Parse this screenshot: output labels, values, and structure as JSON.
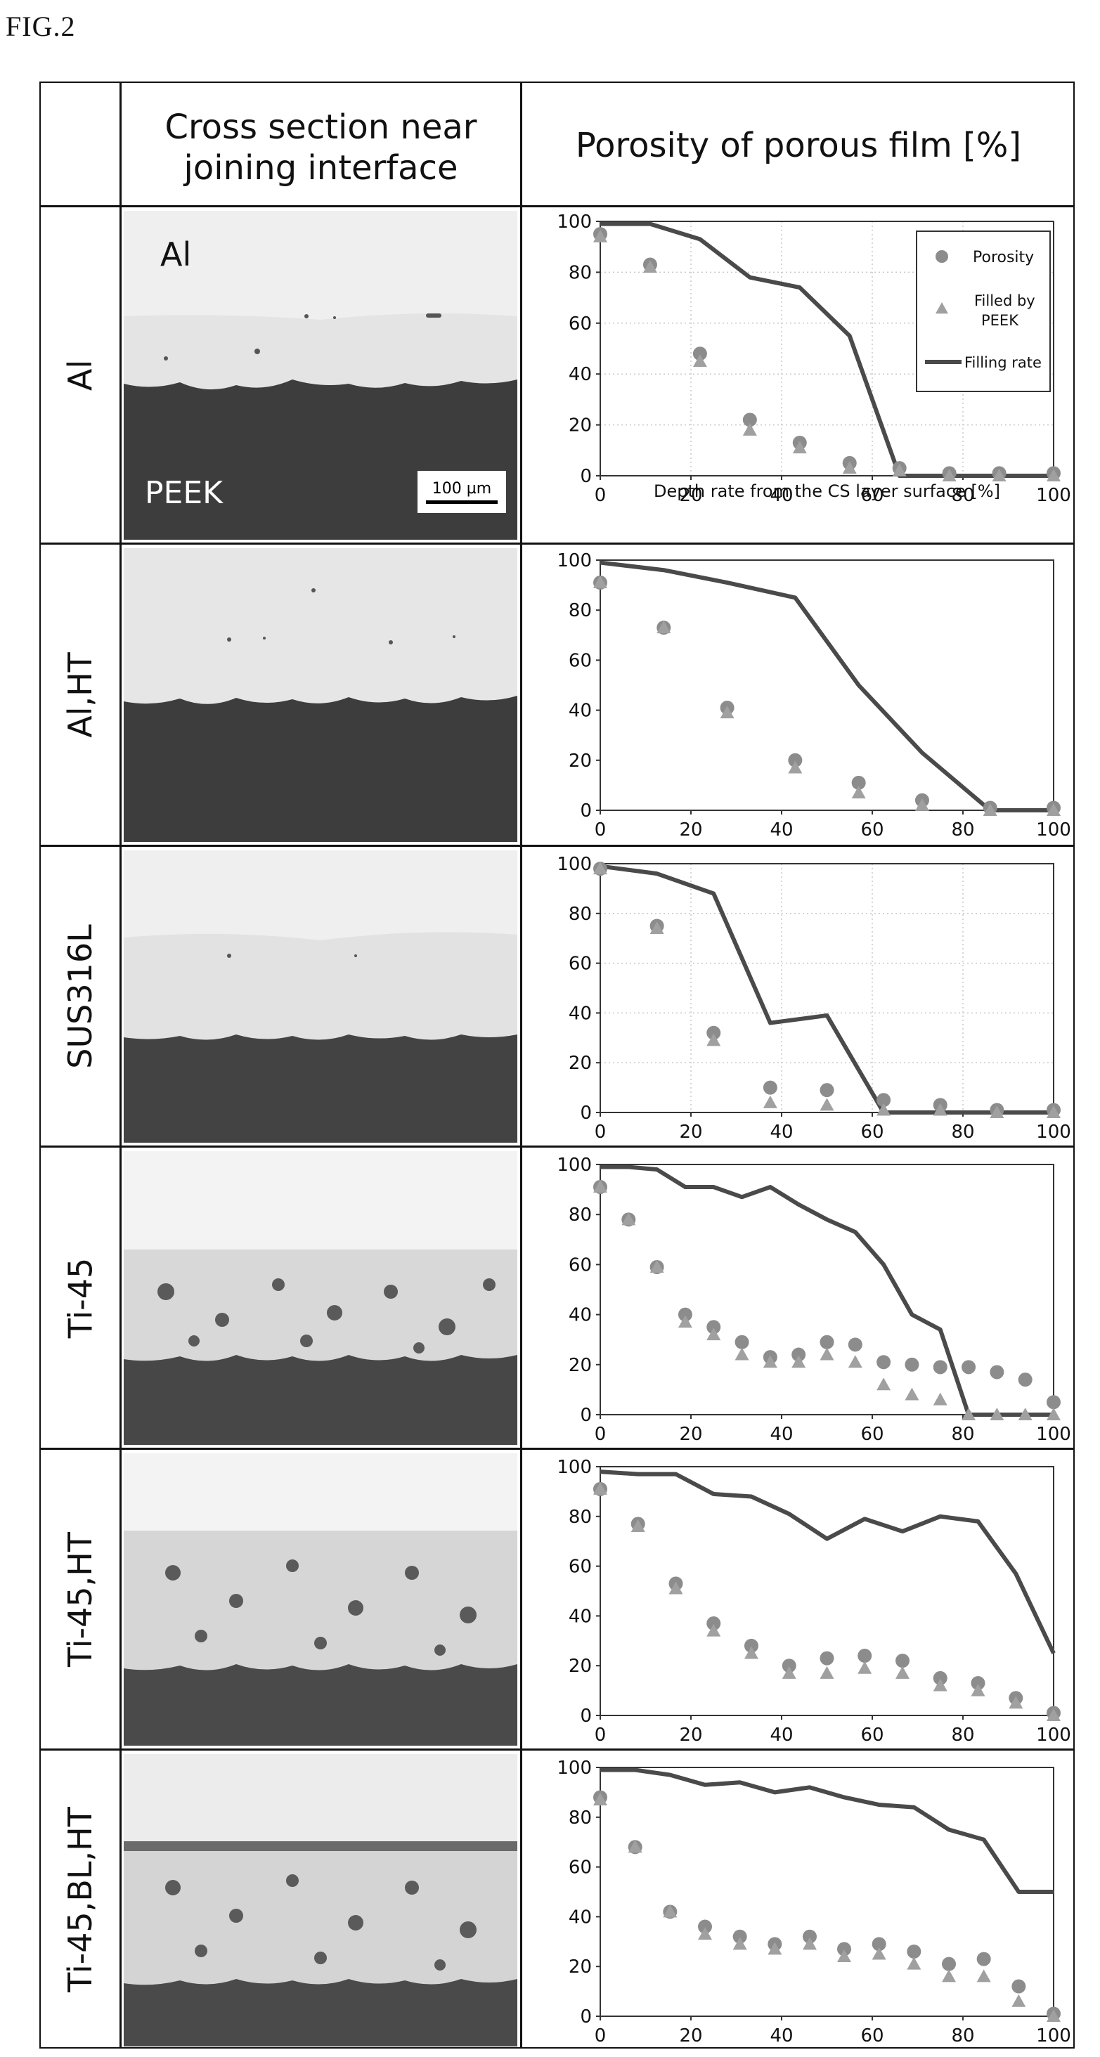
{
  "figure_label": "FIG.2",
  "header": {
    "cross_section": "Cross section near joining interface",
    "cross_section_l1": "Cross section near",
    "cross_section_l2": "joining interface",
    "porosity": "Porosity of porous film [%]"
  },
  "micrograph_labels": {
    "metal": "Al",
    "polymer": "PEEK",
    "scale_bar": "100 µm"
  },
  "colors": {
    "porosity_marker": "#8c8c8c",
    "filled_marker": "#a0a0a0",
    "filling_line": "#4a4a4a",
    "peek": "#3d3d3d",
    "metal": "#e2e2e2"
  },
  "chart_data": [
    {
      "type": "line",
      "row_label": "Al",
      "xlabel": "Depth rate from the CS layer surface [%]",
      "xlim": [
        0,
        100
      ],
      "ylim": [
        0,
        100
      ],
      "x_ticks": [
        0,
        20,
        40,
        60,
        80,
        100
      ],
      "y_ticks": [
        0,
        20,
        40,
        60,
        80,
        100
      ],
      "grid": true,
      "legend": {
        "placement": "top-right",
        "porosity": "Porosity",
        "filled": "Filled by PEEK",
        "filled_l1": "Filled by",
        "filled_l2": "PEEK",
        "filling": "Filling rate"
      },
      "series": [
        {
          "name": "Porosity",
          "kind": "circle",
          "x": [
            0,
            11,
            22,
            33,
            44,
            55,
            66,
            77,
            88,
            100
          ],
          "values": [
            95,
            83,
            48,
            22,
            13,
            5,
            3,
            1,
            1,
            1
          ]
        },
        {
          "name": "Filled by PEEK",
          "kind": "triangle",
          "x": [
            0,
            11,
            22,
            33,
            44,
            55,
            66,
            77,
            88,
            100
          ],
          "values": [
            94,
            82,
            45,
            18,
            11,
            3,
            2,
            0,
            0,
            0
          ]
        },
        {
          "name": "Filling rate",
          "kind": "line",
          "x": [
            0,
            11,
            22,
            33,
            44,
            55,
            66,
            77,
            88,
            100
          ],
          "values": [
            99,
            99,
            93,
            78,
            74,
            55,
            0,
            0,
            0,
            0
          ]
        }
      ]
    },
    {
      "type": "line",
      "row_label": "Al,HT",
      "xlim": [
        0,
        100
      ],
      "ylim": [
        0,
        100
      ],
      "x_ticks": [
        0,
        20,
        40,
        60,
        80,
        100
      ],
      "y_ticks": [
        0,
        20,
        40,
        60,
        80,
        100
      ],
      "grid": false,
      "series": [
        {
          "kind": "circle",
          "x": [
            0,
            14,
            28,
            43,
            57,
            71,
            86,
            100
          ],
          "values": [
            91,
            73,
            41,
            20,
            11,
            4,
            1,
            1
          ]
        },
        {
          "kind": "triangle",
          "x": [
            0,
            14,
            28,
            43,
            57,
            71,
            86,
            100
          ],
          "values": [
            91,
            73,
            39,
            17,
            7,
            2,
            0,
            0
          ]
        },
        {
          "kind": "line",
          "x": [
            0,
            14,
            28,
            43,
            57,
            71,
            86,
            100
          ],
          "values": [
            99,
            96,
            91,
            85,
            50,
            23,
            0,
            0
          ]
        }
      ]
    },
    {
      "type": "line",
      "row_label": "SUS316L",
      "xlim": [
        0,
        100
      ],
      "ylim": [
        0,
        100
      ],
      "x_ticks": [
        0,
        20,
        40,
        60,
        80,
        100
      ],
      "y_ticks": [
        0,
        20,
        40,
        60,
        80,
        100
      ],
      "grid": true,
      "series": [
        {
          "kind": "circle",
          "x": [
            0,
            12.5,
            25,
            37.5,
            50,
            62.5,
            75,
            87.5,
            100
          ],
          "values": [
            98,
            75,
            32,
            10,
            9,
            5,
            3,
            1,
            1
          ]
        },
        {
          "kind": "triangle",
          "x": [
            0,
            12.5,
            25,
            37.5,
            50,
            62.5,
            75,
            87.5,
            100
          ],
          "values": [
            98,
            74,
            29,
            4,
            3,
            1,
            1,
            0,
            0
          ]
        },
        {
          "kind": "line",
          "x": [
            0,
            12.5,
            25,
            37.5,
            50,
            62.5,
            75,
            87.5,
            100
          ],
          "values": [
            99,
            96,
            88,
            36,
            39,
            0,
            0,
            0,
            0
          ]
        }
      ]
    },
    {
      "type": "line",
      "row_label": "Ti-45",
      "xlim": [
        0,
        100
      ],
      "ylim": [
        0,
        100
      ],
      "x_ticks": [
        0,
        20,
        40,
        60,
        80,
        100
      ],
      "y_ticks": [
        0,
        20,
        40,
        60,
        80,
        100
      ],
      "grid": false,
      "series": [
        {
          "kind": "circle",
          "x": [
            0,
            6.25,
            12.5,
            18.75,
            25,
            31.25,
            37.5,
            43.75,
            50,
            56.25,
            62.5,
            68.75,
            75,
            81.25,
            87.5,
            93.75,
            100
          ],
          "values": [
            91,
            78,
            59,
            40,
            35,
            29,
            23,
            24,
            29,
            28,
            21,
            20,
            19,
            19,
            17,
            14,
            5
          ]
        },
        {
          "kind": "triangle",
          "x": [
            0,
            6.25,
            12.5,
            18.75,
            25,
            31.25,
            37.5,
            43.75,
            50,
            56.25,
            62.5,
            68.75,
            75,
            81.25,
            87.5,
            93.75,
            100
          ],
          "values": [
            91,
            78,
            59,
            37,
            32,
            24,
            21,
            21,
            24,
            21,
            12,
            8,
            6,
            0,
            0,
            0,
            0
          ]
        },
        {
          "kind": "line",
          "x": [
            0,
            6.25,
            12.5,
            18.75,
            25,
            31.25,
            37.5,
            43.75,
            50,
            56.25,
            62.5,
            68.75,
            75,
            81.25,
            87.5,
            93.75,
            100
          ],
          "values": [
            99,
            99,
            98,
            91,
            91,
            87,
            91,
            84,
            78,
            73,
            60,
            40,
            34,
            0,
            0,
            0,
            0
          ]
        }
      ]
    },
    {
      "type": "line",
      "row_label": "Ti-45,HT",
      "xlim": [
        0,
        100
      ],
      "ylim": [
        0,
        100
      ],
      "x_ticks": [
        0,
        20,
        40,
        60,
        80,
        100
      ],
      "y_ticks": [
        0,
        20,
        40,
        60,
        80,
        100
      ],
      "grid": false,
      "series": [
        {
          "kind": "circle",
          "x": [
            0,
            8.33,
            16.67,
            25,
            33.33,
            41.67,
            50,
            58.33,
            66.67,
            75,
            83.33,
            91.67,
            100
          ],
          "values": [
            91,
            77,
            53,
            37,
            28,
            20,
            23,
            24,
            22,
            15,
            13,
            7,
            1
          ]
        },
        {
          "kind": "triangle",
          "x": [
            0,
            8.33,
            16.67,
            25,
            33.33,
            41.67,
            50,
            58.33,
            66.67,
            75,
            83.33,
            91.67,
            100
          ],
          "values": [
            91,
            76,
            51,
            34,
            25,
            17,
            17,
            19,
            17,
            12,
            10,
            5,
            0
          ]
        },
        {
          "kind": "line",
          "x": [
            0,
            8.33,
            16.67,
            25,
            33.33,
            41.67,
            50,
            58.33,
            66.67,
            75,
            83.33,
            91.67,
            100
          ],
          "values": [
            98,
            97,
            97,
            89,
            88,
            81,
            71,
            79,
            74,
            80,
            78,
            57,
            25
          ]
        }
      ]
    },
    {
      "type": "line",
      "row_label": "Ti-45,BL,HT",
      "xlim": [
        0,
        100
      ],
      "ylim": [
        0,
        100
      ],
      "x_ticks": [
        0,
        20,
        40,
        60,
        80,
        100
      ],
      "y_ticks": [
        0,
        20,
        40,
        60,
        80,
        100
      ],
      "grid": false,
      "series": [
        {
          "kind": "circle",
          "x": [
            0,
            7.7,
            15.4,
            23.1,
            30.8,
            38.5,
            46.2,
            53.8,
            61.5,
            69.2,
            76.9,
            84.6,
            92.3,
            100
          ],
          "values": [
            88,
            68,
            42,
            36,
            32,
            29,
            32,
            27,
            29,
            26,
            21,
            23,
            12,
            1
          ]
        },
        {
          "kind": "triangle",
          "x": [
            0,
            7.7,
            15.4,
            23.1,
            30.8,
            38.5,
            46.2,
            53.8,
            61.5,
            69.2,
            76.9,
            84.6,
            92.3,
            100
          ],
          "values": [
            87,
            68,
            42,
            33,
            29,
            27,
            29,
            24,
            25,
            21,
            16,
            16,
            6,
            0
          ]
        },
        {
          "kind": "line",
          "x": [
            0,
            7.7,
            15.4,
            23.1,
            30.8,
            38.5,
            46.2,
            53.8,
            61.5,
            69.2,
            76.9,
            84.6,
            92.3,
            100
          ],
          "values": [
            99,
            99,
            97,
            93,
            94,
            90,
            92,
            88,
            85,
            84,
            75,
            71,
            50,
            50
          ]
        }
      ]
    }
  ]
}
